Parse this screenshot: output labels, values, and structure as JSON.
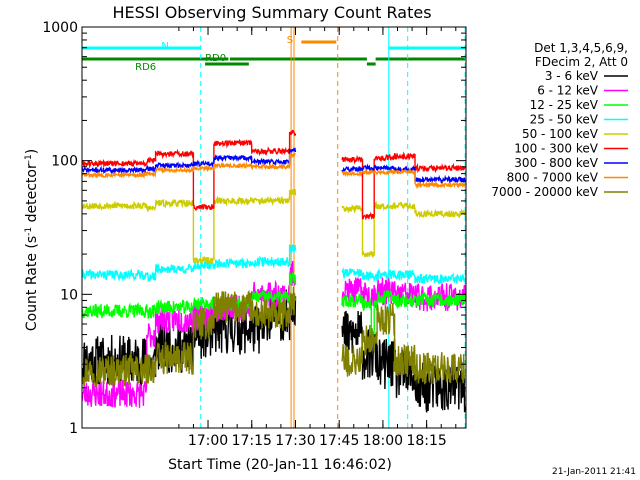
{
  "chart_data": {
    "type": "line",
    "title": "HESSI Observing Summary Count Rates",
    "xlabel": "Start Time (20-Jan-11 16:46:02)",
    "ylabel_main": "Count Rate (s",
    "ylabel_sup1": "-1",
    "ylabel_mid": " detector",
    "ylabel_sup2": "-1",
    "ylabel_end": ")",
    "y_scale": "log",
    "ylim": [
      1,
      1000
    ],
    "xlim_minutes": [
      16.7667,
      148.5
    ],
    "x_ticks": [
      {
        "label": "17:00",
        "m": 60
      },
      {
        "label": "17:15",
        "m": 75
      },
      {
        "label": "17:30",
        "m": 90
      },
      {
        "label": "17:45",
        "m": 105
      },
      {
        "label": "18:00",
        "m": 120
      },
      {
        "label": "18:15",
        "m": 135
      }
    ],
    "y_ticks": [
      {
        "label": "1",
        "v": 1
      },
      {
        "label": "10",
        "v": 10
      },
      {
        "label": "100",
        "v": 100
      },
      {
        "label": "1000",
        "v": 1000
      }
    ],
    "legend_header": [
      "Det 1,3,4,5,6,9,",
      "FDecim 2, Att 0"
    ],
    "series": [
      {
        "name": "3 - 6 keV",
        "color": "#000000",
        "seed": 11,
        "noise": 0.55,
        "segments": [
          [
            16.77,
            39,
            3.2
          ],
          [
            39,
            42,
            3.0
          ],
          [
            42,
            55,
            4.0
          ],
          [
            55,
            62,
            5.0
          ],
          [
            62,
            80,
            5.5
          ],
          [
            80,
            88,
            7.0
          ],
          [
            88,
            90,
            9.0
          ],
          [
            106,
            113,
            5.0
          ],
          [
            113,
            118,
            3.5
          ],
          [
            118,
            124,
            3.0
          ],
          [
            124,
            131,
            2.5
          ],
          [
            131,
            148.2,
            2.0
          ]
        ]
      },
      {
        "name": "6 - 12 keV",
        "color": "#ff00ff",
        "seed": 23,
        "noise": 0.3,
        "segments": [
          [
            16.77,
            39,
            1.8
          ],
          [
            39,
            42,
            5.0
          ],
          [
            42,
            55,
            6.5
          ],
          [
            55,
            62,
            7.0
          ],
          [
            62,
            75,
            8.0
          ],
          [
            75,
            88,
            10.0
          ],
          [
            88,
            90,
            14.0
          ],
          [
            106,
            113,
            10.5
          ],
          [
            113,
            118,
            10.0
          ],
          [
            118,
            124,
            10.5
          ],
          [
            124,
            131,
            10.0
          ],
          [
            131,
            148.2,
            9.5
          ]
        ]
      },
      {
        "name": "12 - 25 keV",
        "color": "#00ff00",
        "seed": 37,
        "noise": 0.15,
        "segments": [
          [
            16.77,
            39,
            7.5
          ],
          [
            39,
            42,
            7.5
          ],
          [
            42,
            55,
            8.0
          ],
          [
            55,
            62,
            8.5
          ],
          [
            62,
            75,
            8.5
          ],
          [
            75,
            88,
            9.5
          ],
          [
            88,
            90,
            13.0
          ],
          [
            106,
            113,
            9.0
          ],
          [
            113,
            116,
            8.5
          ],
          [
            116,
            117,
            5.5
          ],
          [
            117,
            118,
            8.5
          ],
          [
            118,
            124,
            9.5
          ],
          [
            124,
            131,
            9.0
          ],
          [
            131,
            148.2,
            9.0
          ]
        ]
      },
      {
        "name": "25 - 50 keV",
        "color": "#00ffff",
        "seed": 41,
        "noise": 0.1,
        "segments": [
          [
            16.77,
            39,
            14.0
          ],
          [
            39,
            42,
            13.5
          ],
          [
            42,
            55,
            15.5
          ],
          [
            55,
            62,
            16.5
          ],
          [
            62,
            75,
            17.0
          ],
          [
            75,
            88,
            17.5
          ],
          [
            88,
            90,
            22.0
          ],
          [
            106,
            113,
            14.5
          ],
          [
            113,
            118,
            13.5
          ],
          [
            118,
            124,
            14.0
          ],
          [
            124,
            131,
            14.0
          ],
          [
            131,
            148.2,
            13.0
          ]
        ]
      },
      {
        "name": "50 - 100 keV",
        "color": "#cccc00",
        "seed": 53,
        "noise": 0.07,
        "segments": [
          [
            16.77,
            39,
            46.0
          ],
          [
            39,
            42,
            44.0
          ],
          [
            42,
            55,
            48.0
          ],
          [
            55,
            62,
            18.0
          ],
          [
            62,
            75,
            50.0
          ],
          [
            75,
            88,
            50.0
          ],
          [
            88,
            90,
            58.0
          ],
          [
            106,
            113,
            44.0
          ],
          [
            113,
            117,
            20.0
          ],
          [
            117,
            124,
            46.0
          ],
          [
            124,
            131,
            46.0
          ],
          [
            131,
            148.2,
            40.0
          ]
        ]
      },
      {
        "name": "100 - 300 keV",
        "color": "#ff0000",
        "seed": 61,
        "noise": 0.06,
        "segments": [
          [
            16.77,
            39,
            95.0
          ],
          [
            39,
            42,
            100.0
          ],
          [
            42,
            55,
            112.0
          ],
          [
            55,
            62,
            45.0
          ],
          [
            62,
            75,
            135.0
          ],
          [
            75,
            88,
            118.0
          ],
          [
            88,
            90,
            160.0
          ],
          [
            106,
            113,
            102.0
          ],
          [
            113,
            117,
            38.0
          ],
          [
            117,
            124,
            105.0
          ],
          [
            124,
            131,
            108.0
          ],
          [
            131,
            148.2,
            88.0
          ]
        ]
      },
      {
        "name": "300 - 800 keV",
        "color": "#0000ff",
        "seed": 71,
        "noise": 0.05,
        "segments": [
          [
            16.77,
            39,
            85.0
          ],
          [
            39,
            42,
            87.0
          ],
          [
            42,
            55,
            92.0
          ],
          [
            55,
            62,
            95.0
          ],
          [
            62,
            75,
            105.0
          ],
          [
            75,
            88,
            98.0
          ],
          [
            88,
            90,
            120.0
          ],
          [
            106,
            113,
            86.0
          ],
          [
            113,
            117,
            88.0
          ],
          [
            117,
            124,
            88.0
          ],
          [
            124,
            131,
            86.0
          ],
          [
            131,
            148.2,
            72.0
          ]
        ]
      },
      {
        "name": "800 - 7000 keV",
        "color": "#ff8800",
        "seed": 83,
        "noise": 0.04,
        "segments": [
          [
            16.77,
            39,
            78.0
          ],
          [
            39,
            42,
            80.0
          ],
          [
            42,
            55,
            85.0
          ],
          [
            55,
            62,
            88.0
          ],
          [
            62,
            75,
            92.0
          ],
          [
            75,
            88,
            90.0
          ],
          [
            88,
            90,
            110.0
          ],
          [
            106,
            113,
            80.0
          ],
          [
            113,
            117,
            82.0
          ],
          [
            117,
            124,
            82.0
          ],
          [
            124,
            131,
            82.0
          ],
          [
            131,
            148.2,
            66.0
          ]
        ]
      },
      {
        "name": "7000 - 20000 keV",
        "color": "#808000",
        "seed": 97,
        "noise": 0.35,
        "segments": [
          [
            16.77,
            39,
            2.7
          ],
          [
            39,
            42,
            2.8
          ],
          [
            42,
            55,
            3.3
          ],
          [
            55,
            62,
            6.0
          ],
          [
            62,
            75,
            8.0
          ],
          [
            75,
            88,
            7.0
          ],
          [
            88,
            90,
            9.0
          ],
          [
            106,
            113,
            3.2
          ],
          [
            113,
            118,
            4.5
          ],
          [
            118,
            124,
            6.5
          ],
          [
            124,
            131,
            3.2
          ],
          [
            131,
            148.2,
            2.8
          ]
        ]
      }
    ],
    "status_bands": [
      {
        "label": "N",
        "color": "#00ffff",
        "level": 0,
        "segments": [
          [
            16.77,
            57.5
          ],
          [
            122,
            148.2
          ]
        ],
        "label_m": 44
      },
      {
        "label": "S",
        "color": "#ff8800",
        "level": 1,
        "segments": [
          [
            92,
            104
          ]
        ],
        "label_m": 87
      },
      {
        "label": "RD0",
        "color": "#008800",
        "level": 2,
        "segments": [
          [
            16.77,
            67
          ],
          [
            67.5,
            114.5
          ],
          [
            117.5,
            148.2
          ]
        ],
        "label_m": 59
      },
      {
        "label": "RD6",
        "color": "#008800",
        "level": 3,
        "segments": [
          [
            59,
            74
          ],
          [
            114.5,
            117.5
          ]
        ],
        "label_m": 35
      }
    ],
    "vertical_lines": [
      {
        "m": 57.5,
        "color": "#00ffff",
        "dash": true
      },
      {
        "m": 122.0,
        "color": "#00ffff",
        "dash": false
      },
      {
        "m": 128.5,
        "color": "#00ffff",
        "dash": true
      },
      {
        "m": 148.2,
        "color": "#00ffff",
        "dash": true
      },
      {
        "m": 88.5,
        "color": "#ff8800",
        "dash": false
      },
      {
        "m": 89.5,
        "color": "#ff8800",
        "dash": false
      },
      {
        "m": 104.5,
        "color": "#ff8800",
        "dash": true
      }
    ],
    "data_gap": [
      90.2,
      106.0
    ],
    "grid": false,
    "legend_position": "right"
  },
  "footer_timestamp": "21-Jan-2011 21:41"
}
